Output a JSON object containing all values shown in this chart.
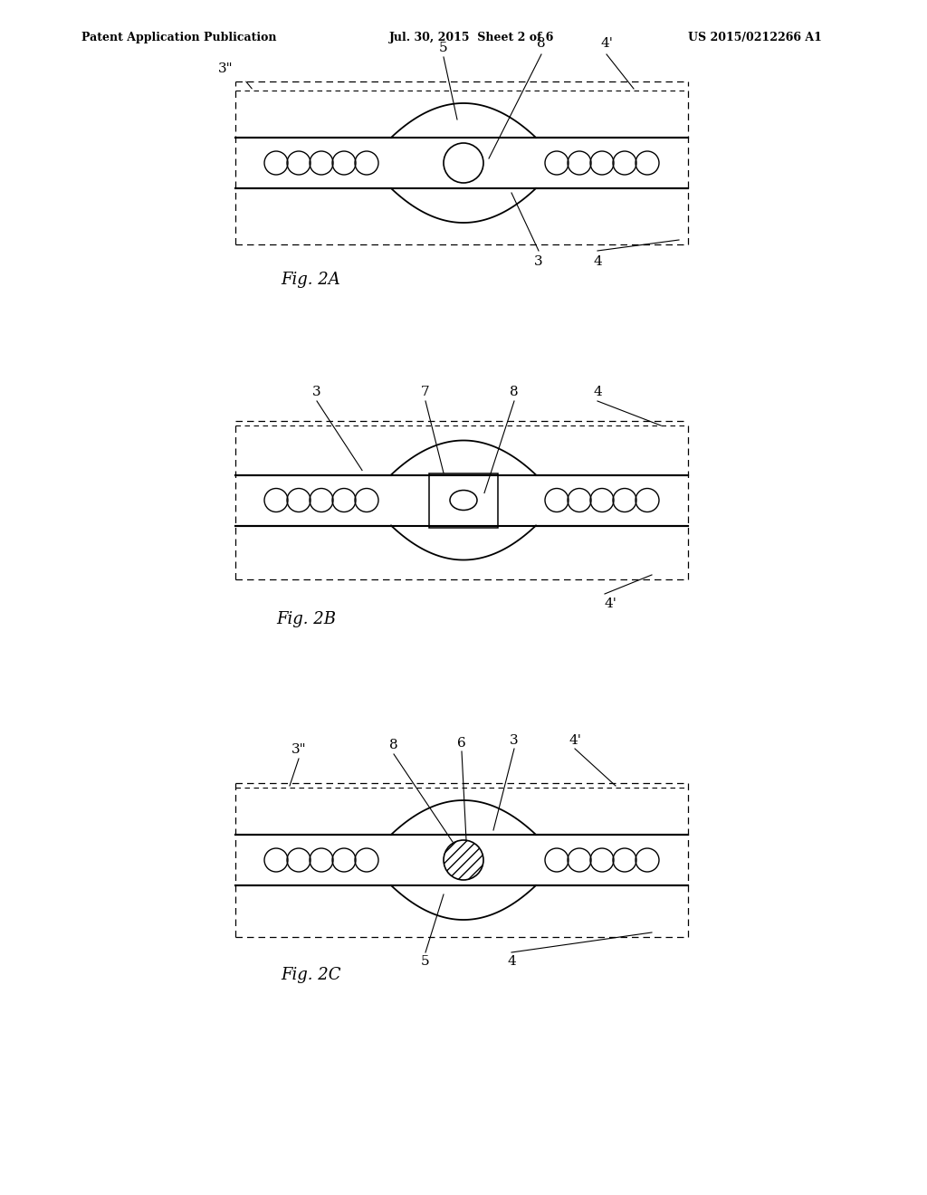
{
  "bg_color": "#ffffff",
  "line_color": "#000000",
  "header_left": "Patent Application Publication",
  "header_mid": "Jul. 30, 2015  Sheet 2 of 6",
  "header_right": "US 2015/0212266 A1",
  "fig2A_label": "Fig. 2A",
  "fig2B_label": "Fig. 2B",
  "fig2C_label": "Fig. 2C"
}
